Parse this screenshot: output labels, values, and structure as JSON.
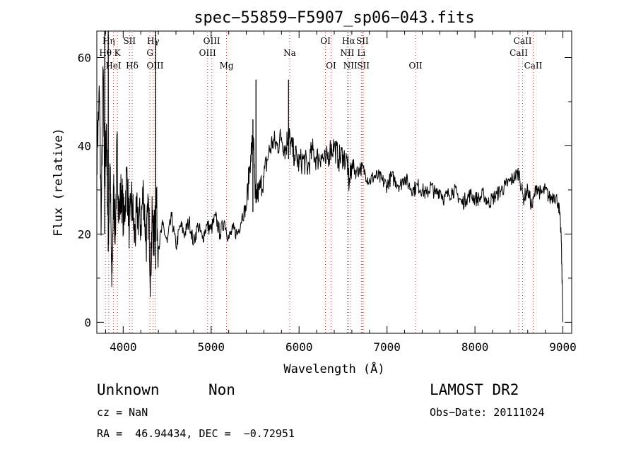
{
  "chart_data": {
    "type": "line",
    "title": "spec−55859−F5907_sp06−043.fits",
    "xlabel": "Wavelength (Å)",
    "ylabel": "Flux (relative)",
    "xlim": [
      3700,
      9100
    ],
    "ylim": [
      -2.5,
      66
    ],
    "x_ticks": [
      4000,
      5000,
      6000,
      7000,
      8000,
      9000
    ],
    "y_ticks": [
      0,
      20,
      40,
      60
    ],
    "grid": false,
    "line_color": "#000000",
    "marker_color": "#cc3333",
    "series": [
      {
        "x": [
          3700,
          3730,
          3750,
          3770,
          3790,
          3810,
          3830,
          3850,
          3870,
          3890,
          3910,
          3930,
          3950,
          3980,
          4010,
          4040,
          4070,
          4100,
          4130,
          4160,
          4200,
          4230,
          4260,
          4290,
          4310,
          4330,
          4350,
          4370,
          4400,
          4450,
          4500,
          4550,
          4600,
          4650,
          4700,
          4750,
          4800,
          4850,
          4900,
          4950,
          5000,
          5050,
          5100,
          5150,
          5200,
          5250,
          5300,
          5350,
          5400,
          5450,
          5480,
          5500,
          5550,
          5600,
          5650,
          5700,
          5750,
          5800,
          5850,
          5880,
          5900,
          5950,
          6000,
          6050,
          6100,
          6150,
          6200,
          6250,
          6300,
          6350,
          6400,
          6450,
          6500,
          6550,
          6570,
          6600,
          6650,
          6700,
          6750,
          6800,
          6850,
          6900,
          6950,
          7000,
          7050,
          7100,
          7150,
          7200,
          7250,
          7300,
          7350,
          7400,
          7450,
          7500,
          7550,
          7600,
          7650,
          7700,
          7750,
          7800,
          7850,
          7900,
          7950,
          8000,
          8050,
          8100,
          8150,
          8200,
          8250,
          8300,
          8350,
          8400,
          8450,
          8500,
          8550,
          8600,
          8650,
          8700,
          8750,
          8800,
          8850,
          8900,
          8950,
          8980,
          9000
        ],
        "y": [
          38,
          52,
          22,
          58,
          30,
          45,
          18,
          36,
          8,
          30,
          20,
          40,
          24,
          30,
          22,
          34,
          21,
          28,
          19,
          25,
          22,
          30,
          18,
          26,
          10,
          24,
          18,
          30,
          17,
          22,
          18,
          24,
          17,
          22,
          20,
          23,
          18,
          22,
          19,
          22,
          21,
          24,
          20,
          23,
          19,
          21,
          20,
          24,
          26,
          38,
          42,
          28,
          30,
          33,
          38,
          41,
          40,
          42,
          39,
          44,
          40,
          38,
          36,
          37,
          35,
          39,
          37,
          38,
          36,
          39,
          40,
          37,
          38,
          36,
          31,
          36,
          34,
          35,
          34,
          32,
          33,
          33,
          32,
          31,
          33,
          32,
          31,
          33,
          31,
          30,
          31,
          30,
          29,
          31,
          29,
          30,
          28,
          29,
          30,
          29,
          27,
          28,
          29,
          28,
          28,
          29,
          27,
          28,
          29,
          30,
          31,
          32,
          33,
          34,
          28,
          30,
          26,
          31,
          29,
          30,
          28,
          29,
          27,
          20,
          0
        ]
      }
    ],
    "spikes": [
      {
        "x": 4370,
        "y": 66,
        "bottom": 12
      },
      {
        "x": 5475,
        "y": 46,
        "bottom": 25
      },
      {
        "x": 5510,
        "y": 55,
        "bottom": 27
      },
      {
        "x": 5880,
        "y": 55,
        "bottom": 37
      },
      {
        "x": 3790,
        "y": 66,
        "bottom": 20
      },
      {
        "x": 3830,
        "y": 66,
        "bottom": 16
      }
    ],
    "lines": [
      {
        "label": "Hη",
        "x": 3835,
        "row": 0
      },
      {
        "label": "Hθ",
        "x": 3798,
        "row": 1
      },
      {
        "label": "HeI",
        "x": 3889,
        "row": 2
      },
      {
        "label": "K",
        "x": 3934,
        "row": 1
      },
      {
        "label": "SII",
        "x": 4072,
        "row": 0
      },
      {
        "label": "Hδ",
        "x": 4102,
        "row": 2
      },
      {
        "label": "Hγ",
        "x": 4341,
        "row": 0
      },
      {
        "label": "G",
        "x": 4304,
        "row": 1
      },
      {
        "label": "OIII",
        "x": 4363,
        "row": 2
      },
      {
        "label": "OIII",
        "x": 5007,
        "row": 0
      },
      {
        "label": "OIII",
        "x": 4959,
        "row": 1
      },
      {
        "label": "Mg",
        "x": 5175,
        "row": 2
      },
      {
        "label": "Na",
        "x": 5893,
        "row": 1
      },
      {
        "label": "OI",
        "x": 6300,
        "row": 0
      },
      {
        "label": "OI",
        "x": 6364,
        "row": 2
      },
      {
        "label": "Hα",
        "x": 6563,
        "row": 0
      },
      {
        "label": "NII",
        "x": 6548,
        "row": 1
      },
      {
        "label": "NII",
        "x": 6583,
        "row": 2
      },
      {
        "label": "SII",
        "x": 6720,
        "row": 0
      },
      {
        "label": "Li",
        "x": 6708,
        "row": 1
      },
      {
        "label": "SII",
        "x": 6731,
        "row": 2
      },
      {
        "label": "OII",
        "x": 7325,
        "row": 2
      },
      {
        "label": "CaII",
        "x": 8542,
        "row": 0
      },
      {
        "label": "CaII",
        "x": 8498,
        "row": 1
      },
      {
        "label": "CaII",
        "x": 8662,
        "row": 2
      }
    ]
  },
  "info": {
    "class": "Unknown",
    "subclass": "Non",
    "release": "LAMOST DR2",
    "cz": "cz = NaN",
    "obs_date": "Obs−Date: 20111024",
    "radec": "RA =  46.94434, DEC =  −0.72951"
  }
}
